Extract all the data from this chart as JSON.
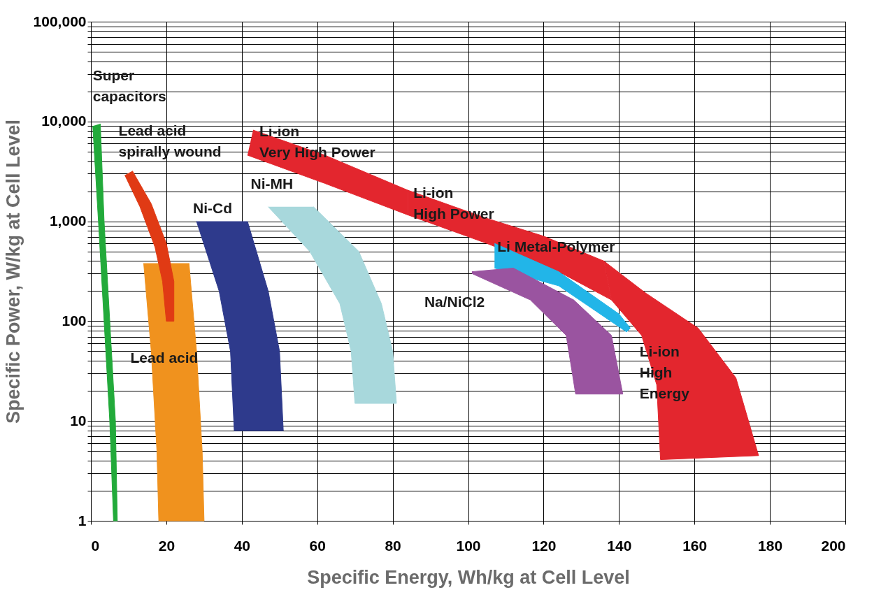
{
  "chart_data": {
    "type": "area",
    "xlabel": "Specific Energy, Wh/kg at Cell Level",
    "ylabel": "Specific Power, W/kg at Cell Level",
    "log": "y",
    "grid": true,
    "xlim": [
      0,
      200
    ],
    "xticks": [
      0,
      20,
      40,
      60,
      80,
      100,
      120,
      140,
      160,
      180,
      200
    ],
    "ylim": [
      1,
      100000
    ],
    "yticks": [
      1,
      {
        "value": 2,
        "label": null
      },
      {
        "value": 3,
        "label": null
      },
      {
        "value": 4,
        "label": null
      },
      {
        "value": 5,
        "label": null
      },
      {
        "value": 6,
        "label": null
      },
      {
        "value": 7,
        "label": null
      },
      {
        "value": 8,
        "label": null
      },
      {
        "value": 9,
        "label": null
      },
      10,
      {
        "value": 20,
        "label": null
      },
      {
        "value": 30,
        "label": null
      },
      {
        "value": 40,
        "label": null
      },
      {
        "value": 50,
        "label": null
      },
      {
        "value": 60,
        "label": null
      },
      {
        "value": 70,
        "label": null
      },
      {
        "value": 80,
        "label": null
      },
      {
        "value": 90,
        "label": null
      },
      100,
      {
        "value": 200,
        "label": null
      },
      {
        "value": 300,
        "label": null
      },
      {
        "value": 400,
        "label": null
      },
      {
        "value": 500,
        "label": null
      },
      {
        "value": 600,
        "label": null
      },
      {
        "value": 700,
        "label": null
      },
      {
        "value": 800,
        "label": null
      },
      {
        "value": 900,
        "label": null
      },
      {
        "value": 1000,
        "label": "1,000"
      },
      {
        "value": 2000,
        "label": null
      },
      {
        "value": 3000,
        "label": null
      },
      {
        "value": 4000,
        "label": null
      },
      {
        "value": 5000,
        "label": null
      },
      {
        "value": 6000,
        "label": null
      },
      {
        "value": 7000,
        "label": null
      },
      {
        "value": 8000,
        "label": null
      },
      {
        "value": 9000,
        "label": null
      },
      {
        "value": 10000,
        "label": "10,000"
      },
      {
        "value": 20000,
        "label": null
      },
      {
        "value": 30000,
        "label": null
      },
      {
        "value": 40000,
        "label": null
      },
      {
        "value": 50000,
        "label": null
      },
      {
        "value": 60000,
        "label": null
      },
      {
        "value": 70000,
        "label": null
      },
      {
        "value": 80000,
        "label": null
      },
      {
        "value": 90000,
        "label": null
      },
      {
        "value": 100000,
        "label": "100,000"
      }
    ],
    "series": [
      {
        "name": "Super\ncapacitors",
        "color": "#22aa3a",
        "x": [
          0.5,
          2,
          3.5,
          5,
          6,
          7,
          6.5,
          5,
          3.5,
          2.5
        ],
        "values": [
          9000,
          1000,
          100,
          10,
          1,
          1,
          10,
          100,
          1000,
          9500
        ]
      },
      {
        "name": "Lead acid",
        "color": "#f0921e",
        "x": [
          14,
          16,
          17.5,
          18,
          30,
          29.5,
          28,
          26
        ],
        "values": [
          380,
          50,
          5,
          1,
          1,
          5,
          50,
          380
        ]
      },
      {
        "name": "Lead acid\nspirally wound",
        "color": "#e03a14",
        "x": [
          9,
          13,
          17,
          19,
          20,
          22,
          22,
          20,
          16,
          11
        ],
        "values": [
          2900,
          1400,
          550,
          250,
          100,
          100,
          250,
          600,
          1500,
          3200
        ]
      },
      {
        "name": "Ni-Cd",
        "color": "#2e3a8c",
        "x": [
          28,
          34,
          37,
          38,
          51,
          50,
          47,
          41.5
        ],
        "values": [
          1000,
          200,
          50,
          8,
          8,
          50,
          200,
          1000
        ]
      },
      {
        "name": "Ni-MH",
        "color": "#a8d8dc",
        "x": [
          47,
          58,
          66,
          69,
          70,
          81,
          80,
          77,
          71,
          59
        ],
        "values": [
          1400,
          500,
          150,
          50,
          15,
          15,
          50,
          150,
          500,
          1400
        ]
      },
      {
        "name": "Li-ion\nVery High Power",
        "color": "#e3262e",
        "x": [
          43,
          62,
          84,
          84,
          62,
          41.5
        ],
        "values": [
          8200,
          4600,
          2050,
          1160,
          2400,
          4600
        ]
      },
      {
        "name": "Li-ion\nHigh Power",
        "color": "#e3262e",
        "x": [
          84,
          105,
          120,
          136,
          138,
          124,
          105,
          84
        ],
        "values": [
          2050,
          1070,
          710,
          400,
          163,
          313,
          600,
          1160
        ]
      },
      {
        "name": "Li-ion\nHigh\nEnergy",
        "color": "#e3262e",
        "x": [
          136,
          147,
          161,
          171,
          177,
          151,
          150,
          146,
          138
        ],
        "values": [
          400,
          192,
          85,
          27,
          4.5,
          4.1,
          23,
          72,
          163
        ]
      },
      {
        "name": "Li Metal-Polymer",
        "color": "#22b5e8",
        "x": [
          107,
          124,
          140,
          143,
          142,
          124,
          107
        ],
        "values": [
          600,
          313,
          118,
          85,
          78,
          226,
          340
        ]
      },
      {
        "name": "Na/NiCl2",
        "color": "#9a54a0",
        "x": [
          101,
          112,
          128,
          138,
          141,
          128.5,
          126,
          116.5,
          101
        ],
        "values": [
          313,
          340,
          163,
          72,
          18.6,
          18.6,
          72,
          163,
          300
        ]
      }
    ]
  }
}
